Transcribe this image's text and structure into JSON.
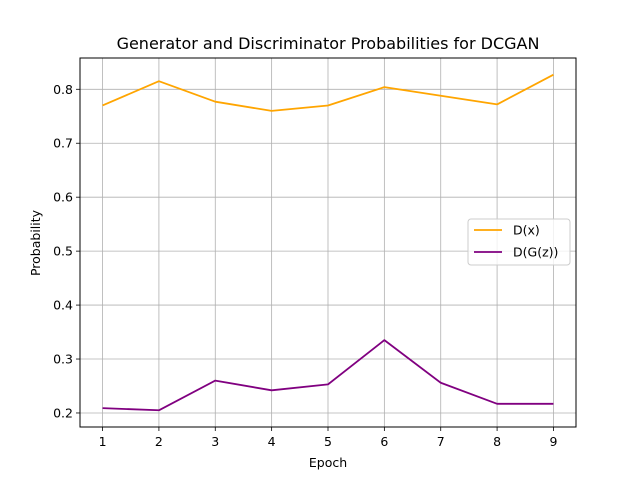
{
  "chart_data": {
    "type": "line",
    "title": "Generator and Discriminator Probabilities for DCGAN",
    "xlabel": "Epoch",
    "ylabel": "Probability",
    "x": [
      1,
      2,
      3,
      4,
      5,
      6,
      7,
      8,
      9
    ],
    "series": [
      {
        "name": "D(x)",
        "color": "#ffa500",
        "values": [
          0.77,
          0.815,
          0.777,
          0.76,
          0.77,
          0.804,
          0.788,
          0.772,
          0.827
        ]
      },
      {
        "name": "D(G(z))",
        "color": "#800080",
        "values": [
          0.209,
          0.205,
          0.26,
          0.242,
          0.253,
          0.335,
          0.256,
          0.217,
          0.217
        ]
      }
    ],
    "xticks": [
      1,
      2,
      3,
      4,
      5,
      6,
      7,
      8,
      9
    ],
    "yticks": [
      0.2,
      0.3,
      0.4,
      0.5,
      0.6,
      0.7,
      0.8
    ],
    "xlim": [
      0.6,
      9.4
    ],
    "ylim": [
      0.174,
      0.858
    ],
    "grid": true,
    "legend_position": "center-right"
  }
}
